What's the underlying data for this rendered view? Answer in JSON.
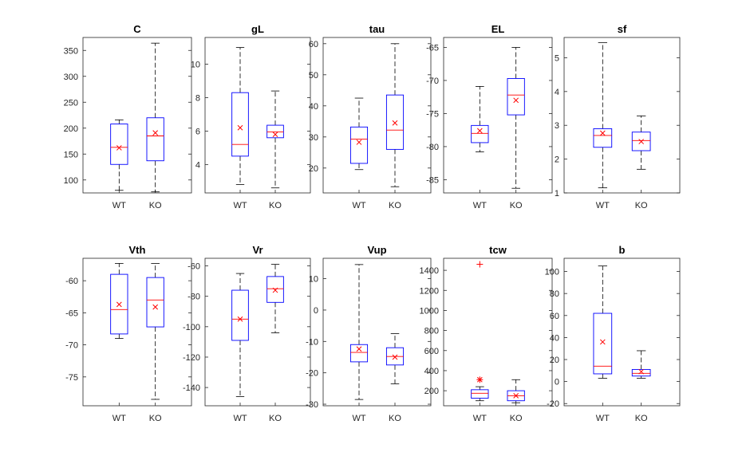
{
  "colors": {
    "box": "#0000ff",
    "median": "#ff0000",
    "mean_marker": "#ff0000",
    "outlier": "#ff0000",
    "whisker": "#000000",
    "axes": "#262626"
  },
  "chart_data": [
    {
      "type": "boxplot",
      "title": "C",
      "categories": [
        "WT",
        "KO"
      ],
      "ylim": [
        75,
        375
      ],
      "yticks": [
        100,
        150,
        200,
        250,
        300,
        350
      ],
      "boxes": [
        {
          "whisker_low": 80,
          "q1": 130,
          "median": 163,
          "q3": 208,
          "whisker_high": 216,
          "mean": 162,
          "outliers": []
        },
        {
          "whisker_low": 77,
          "q1": 137,
          "median": 185,
          "q3": 220,
          "whisker_high": 364,
          "mean": 191,
          "outliers": []
        }
      ]
    },
    {
      "type": "boxplot",
      "title": "gL",
      "categories": [
        "WT",
        "KO"
      ],
      "ylim": [
        2.3,
        11.6
      ],
      "yticks": [
        4,
        6,
        8,
        10
      ],
      "boxes": [
        {
          "whisker_low": 2.8,
          "q1": 4.5,
          "median": 5.2,
          "q3": 8.3,
          "whisker_high": 11.0,
          "mean": 6.2,
          "outliers": []
        },
        {
          "whisker_low": 2.6,
          "q1": 5.6,
          "median": 5.95,
          "q3": 6.35,
          "whisker_high": 8.4,
          "mean": 5.8,
          "outliers": []
        }
      ]
    },
    {
      "type": "boxplot",
      "title": "tau",
      "categories": [
        "WT",
        "KO"
      ],
      "ylim": [
        12,
        62
      ],
      "yticks": [
        20,
        30,
        40,
        50,
        60
      ],
      "boxes": [
        {
          "whisker_low": 19.5,
          "q1": 21.5,
          "median": 29.3,
          "q3": 33.2,
          "whisker_high": 42.5,
          "mean": 28.3,
          "outliers": []
        },
        {
          "whisker_low": 14,
          "q1": 26,
          "median": 32.2,
          "q3": 43.5,
          "whisker_high": 60,
          "mean": 34.5,
          "outliers": []
        }
      ]
    },
    {
      "type": "boxplot",
      "title": "EL",
      "categories": [
        "WT",
        "KO"
      ],
      "ylim": [
        -87,
        -63.5
      ],
      "yticks": [
        -85,
        -80,
        -75,
        -70,
        -65
      ],
      "boxes": [
        {
          "whisker_low": -80.8,
          "q1": -79.4,
          "median": -78.0,
          "q3": -76.8,
          "whisker_high": -70.9,
          "mean": -77.6,
          "outliers": []
        },
        {
          "whisker_low": -86.3,
          "q1": -75.2,
          "median": -72.2,
          "q3": -69.7,
          "whisker_high": -65.0,
          "mean": -73.0,
          "outliers": []
        }
      ]
    },
    {
      "type": "boxplot",
      "title": "sf",
      "categories": [
        "WT",
        "KO"
      ],
      "ylim": [
        1,
        5.6
      ],
      "yticks": [
        1,
        2,
        3,
        4,
        5
      ],
      "boxes": [
        {
          "whisker_low": 1.15,
          "q1": 2.35,
          "median": 2.7,
          "q3": 2.9,
          "whisker_high": 5.45,
          "mean": 2.77,
          "outliers": []
        },
        {
          "whisker_low": 1.7,
          "q1": 2.25,
          "median": 2.55,
          "q3": 2.8,
          "whisker_high": 3.28,
          "mean": 2.52,
          "outliers": []
        }
      ]
    },
    {
      "type": "boxplot",
      "title": "Vth",
      "categories": [
        "WT",
        "KO"
      ],
      "ylim": [
        -79.5,
        -56.5
      ],
      "yticks": [
        -75,
        -70,
        -65,
        -60
      ],
      "boxes": [
        {
          "whisker_low": -69.0,
          "q1": -68.3,
          "median": -64.5,
          "q3": -59.0,
          "whisker_high": -57.3,
          "mean": -63.7,
          "outliers": []
        },
        {
          "whisker_low": -78.5,
          "q1": -67.2,
          "median": -63.0,
          "q3": -59.5,
          "whisker_high": -57.3,
          "mean": -64.1,
          "outliers": []
        }
      ]
    },
    {
      "type": "boxplot",
      "title": "Vr",
      "categories": [
        "WT",
        "KO"
      ],
      "ylim": [
        -152,
        -55
      ],
      "yticks": [
        -140,
        -120,
        -100,
        -80,
        -60
      ],
      "boxes": [
        {
          "whisker_low": -146,
          "q1": -109,
          "median": -95,
          "q3": -76,
          "whisker_high": -65,
          "mean": -95,
          "outliers": []
        },
        {
          "whisker_low": -104,
          "q1": -84,
          "median": -75,
          "q3": -67,
          "whisker_high": -59,
          "mean": -76,
          "outliers": []
        }
      ]
    },
    {
      "type": "boxplot",
      "title": "Vup",
      "categories": [
        "WT",
        "KO"
      ],
      "ylim": [
        -30.5,
        16.5
      ],
      "yticks": [
        -30,
        -20,
        -10,
        0,
        10
      ],
      "boxes": [
        {
          "whisker_low": -28.5,
          "q1": -16.5,
          "median": -13.5,
          "q3": -11.0,
          "whisker_high": 14.5,
          "mean": -12.4,
          "outliers": []
        },
        {
          "whisker_low": -23.5,
          "q1": -17.5,
          "median": -14.8,
          "q3": -12.0,
          "whisker_high": -7.5,
          "mean": -15.0,
          "outliers": []
        }
      ]
    },
    {
      "type": "boxplot",
      "title": "tcw",
      "categories": [
        "WT",
        "KO"
      ],
      "ylim": [
        50,
        1520
      ],
      "yticks": [
        200,
        400,
        600,
        800,
        1000,
        1200,
        1400
      ],
      "boxes": [
        {
          "whisker_low": 100,
          "q1": 125,
          "median": 175,
          "q3": 210,
          "whisker_high": 240,
          "mean": 310,
          "outliers": [
            1460,
            310
          ]
        },
        {
          "whisker_low": 80,
          "q1": 100,
          "median": 150,
          "q3": 200,
          "whisker_high": 310,
          "mean": 150,
          "outliers": []
        }
      ]
    },
    {
      "type": "boxplot",
      "title": "b",
      "categories": [
        "WT",
        "KO"
      ],
      "ylim": [
        -22,
        112
      ],
      "yticks": [
        -20,
        0,
        20,
        40,
        60,
        80,
        100
      ],
      "boxes": [
        {
          "whisker_low": 3,
          "q1": 7,
          "median": 14,
          "q3": 62,
          "whisker_high": 105,
          "mean": 36,
          "outliers": []
        },
        {
          "whisker_low": 3,
          "q1": 5,
          "median": 7.5,
          "q3": 11,
          "whisker_high": 28,
          "mean": 9,
          "outliers": []
        }
      ]
    }
  ]
}
